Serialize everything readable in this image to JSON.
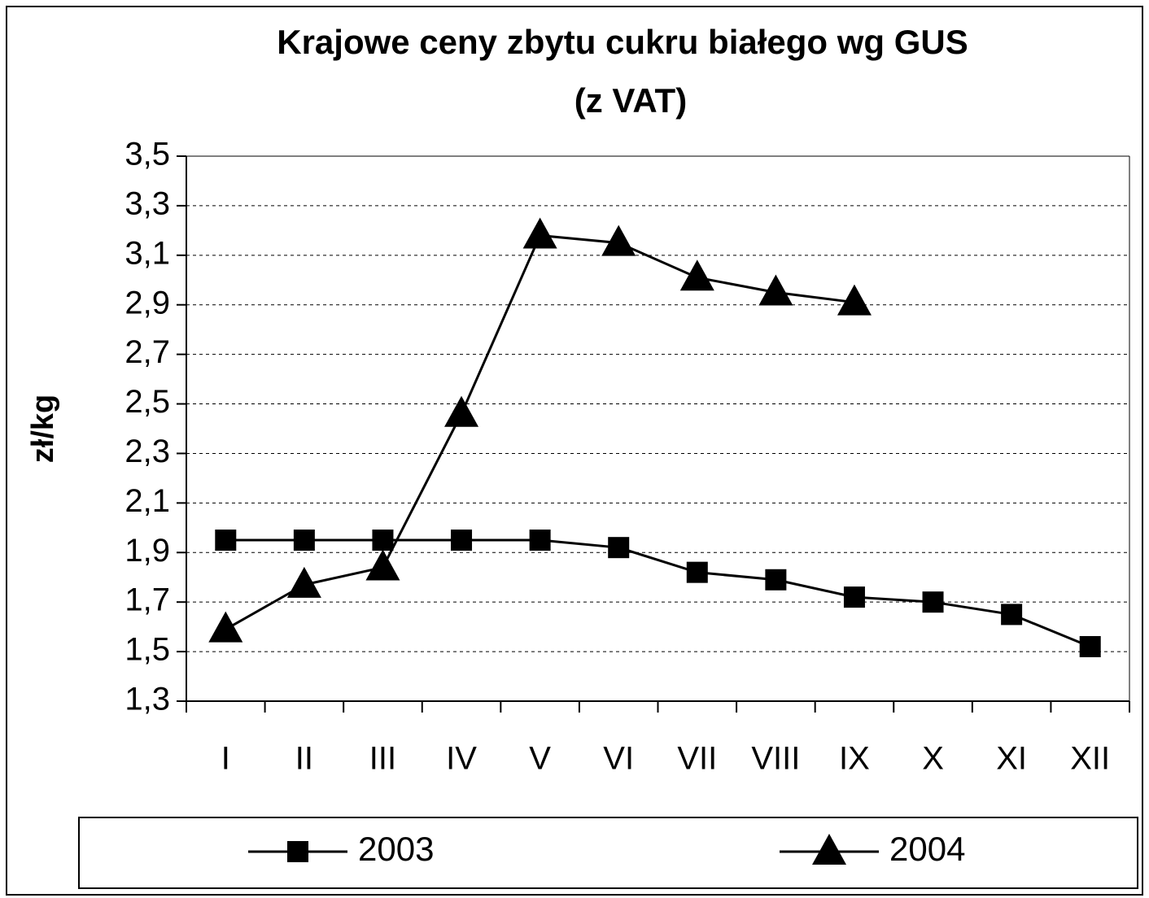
{
  "chart_data": {
    "type": "line",
    "title": [
      "Krajowe ceny zbytu cukru białego wg GUS",
      "(z VAT)"
    ],
    "y_label": "zł/kg",
    "categories": [
      "I",
      "II",
      "III",
      "IV",
      "V",
      "VI",
      "VII",
      "VIII",
      "IX",
      "X",
      "XI",
      "XII"
    ],
    "series": [
      {
        "name": "2003",
        "color": "#000000",
        "marker": "square",
        "values": [
          1.95,
          1.95,
          1.95,
          1.95,
          1.95,
          1.92,
          1.82,
          1.79,
          1.72,
          1.7,
          1.65,
          1.52
        ]
      },
      {
        "name": "2004",
        "color": "#000000",
        "marker": "triangle",
        "values": [
          1.59,
          1.77,
          1.84,
          2.46,
          3.18,
          3.15,
          3.01,
          2.95,
          2.91,
          null,
          null,
          null
        ]
      }
    ],
    "ylim": [
      1.3,
      3.5
    ],
    "yticks": [
      {
        "value": 1.3,
        "label": "1,3"
      },
      {
        "value": 1.5,
        "label": "1,5"
      },
      {
        "value": 1.7,
        "label": "1,7"
      },
      {
        "value": 1.9,
        "label": "1,9"
      },
      {
        "value": 2.1,
        "label": "2,1"
      },
      {
        "value": 2.3,
        "label": "2,3"
      },
      {
        "value": 2.5,
        "label": "2,5"
      },
      {
        "value": 2.7,
        "label": "2,7"
      },
      {
        "value": 2.9,
        "label": "2,9"
      },
      {
        "value": 3.1,
        "label": "3,1"
      },
      {
        "value": 3.3,
        "label": "3,3"
      },
      {
        "value": 3.5,
        "label": "3,5"
      }
    ],
    "grid": true,
    "legend": "bottom"
  }
}
